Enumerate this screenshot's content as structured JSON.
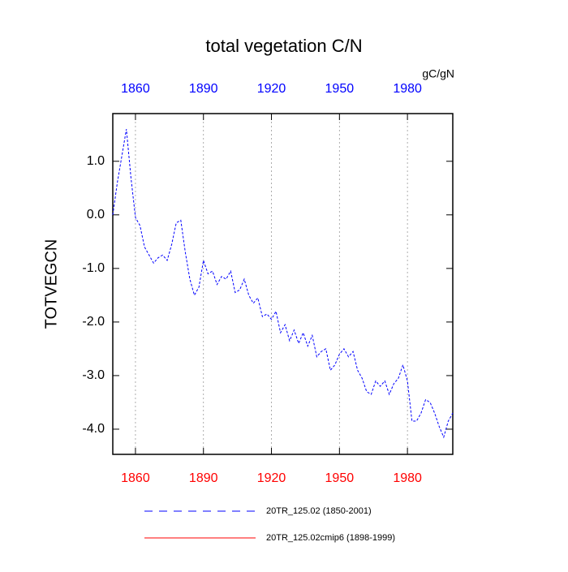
{
  "chart_data": {
    "type": "line",
    "title": "total vegetation C/N",
    "units": "gC/gN",
    "y_label": "TOTVEGCN",
    "xlim": [
      1850,
      2000
    ],
    "xticks": [
      1860,
      1890,
      1920,
      1950,
      1980
    ],
    "x2ticks": [
      1860,
      1890,
      1920,
      1950,
      1980
    ],
    "xtick_color": "#ff0000",
    "x2tick_color": "#0000ff",
    "grid": true,
    "ylim": [
      -4.47,
      1.89
    ],
    "yticks": [
      {
        "value": -4,
        "label": "-4.0"
      },
      {
        "value": -3,
        "label": "-3.0"
      },
      {
        "value": -2,
        "label": "-2.0"
      },
      {
        "value": -1,
        "label": "-1.0"
      },
      {
        "value": 0,
        "label": "0.0"
      },
      {
        "value": 1,
        "label": "1.0"
      }
    ],
    "series": [
      {
        "name": "20TR_125.02 (1850-2001)",
        "color": "#0000ff",
        "dash": true,
        "x": [
          1850,
          1852,
          1854,
          1856,
          1858,
          1860,
          1862,
          1864,
          1866,
          1868,
          1870,
          1872,
          1874,
          1876,
          1878,
          1880,
          1882,
          1884,
          1886,
          1888,
          1890,
          1892,
          1894,
          1896,
          1898,
          1900,
          1902,
          1904,
          1906,
          1908,
          1910,
          1912,
          1914,
          1916,
          1918,
          1920,
          1922,
          1924,
          1926,
          1928,
          1930,
          1932,
          1934,
          1936,
          1938,
          1940,
          1942,
          1944,
          1946,
          1948,
          1950,
          1952,
          1954,
          1956,
          1958,
          1960,
          1962,
          1964,
          1966,
          1968,
          1970,
          1972,
          1974,
          1976,
          1978,
          1980,
          1982,
          1984,
          1986,
          1988,
          1990,
          1992,
          1994,
          1996,
          1998,
          2000
        ],
        "values": [
          0.0,
          0.6,
          1.1,
          1.6,
          0.7,
          -0.05,
          -0.2,
          -0.6,
          -0.75,
          -0.9,
          -0.8,
          -0.75,
          -0.85,
          -0.55,
          -0.15,
          -0.1,
          -0.7,
          -1.2,
          -1.5,
          -1.35,
          -0.85,
          -1.1,
          -1.05,
          -1.3,
          -1.15,
          -1.2,
          -1.05,
          -1.45,
          -1.4,
          -1.2,
          -1.5,
          -1.65,
          -1.55,
          -1.9,
          -1.85,
          -1.95,
          -1.8,
          -2.2,
          -2.05,
          -2.35,
          -2.15,
          -2.4,
          -2.2,
          -2.45,
          -2.25,
          -2.65,
          -2.55,
          -2.5,
          -2.9,
          -2.8,
          -2.6,
          -2.5,
          -2.65,
          -2.55,
          -2.9,
          -3.05,
          -3.3,
          -3.35,
          -3.1,
          -3.2,
          -3.1,
          -3.35,
          -3.15,
          -3.05,
          -2.8,
          -3.1,
          -3.85,
          -3.85,
          -3.7,
          -3.45,
          -3.5,
          -3.7,
          -3.95,
          -4.15,
          -3.85,
          -3.7
        ]
      },
      {
        "name": "20TR_125.02cmip6 (1898-1999)",
        "color": "#ff0000",
        "dash": false,
        "x": [],
        "values": []
      }
    ]
  }
}
